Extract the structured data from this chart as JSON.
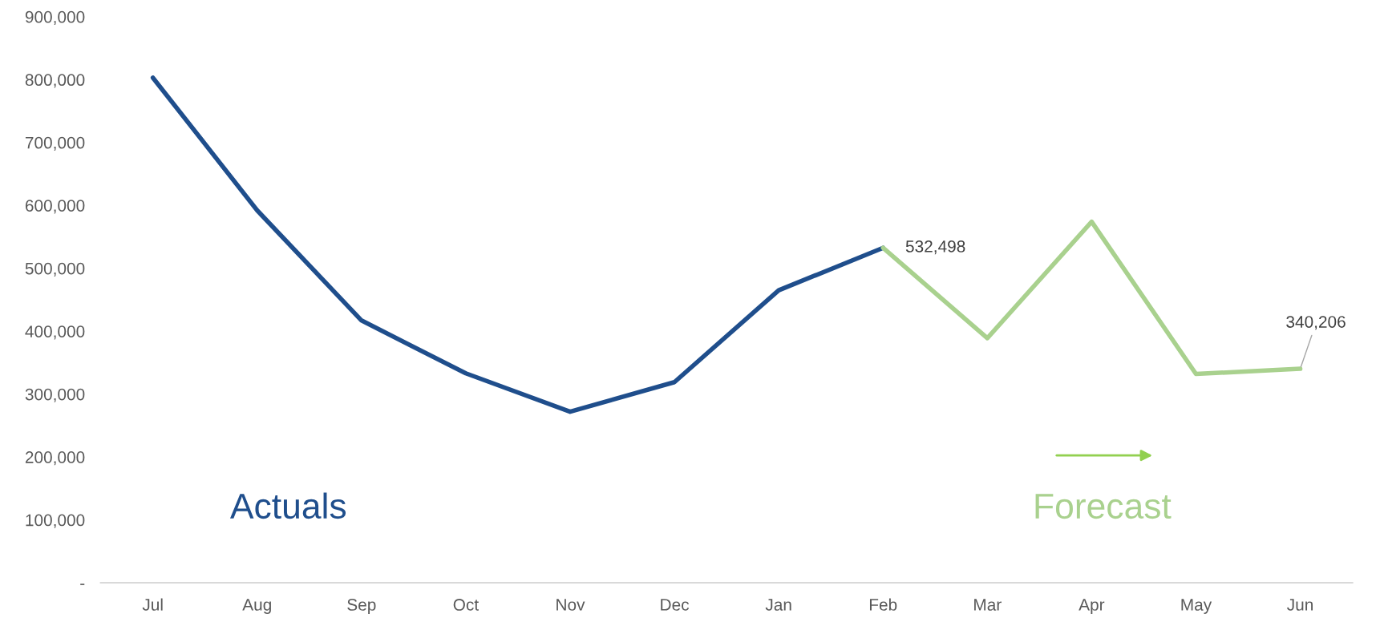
{
  "chart_data": {
    "type": "line",
    "categories": [
      "Jul",
      "Aug",
      "Sep",
      "Oct",
      "Nov",
      "Dec",
      "Jan",
      "Feb",
      "Mar",
      "Apr",
      "May",
      "Jun"
    ],
    "series": [
      {
        "name": "Actuals",
        "color": "#1f4e8c",
        "values": [
          803000,
          592000,
          417000,
          333000,
          272000,
          319000,
          465000,
          532498,
          null,
          null,
          null,
          null
        ]
      },
      {
        "name": "Forecast",
        "color": "#a9d18e",
        "values": [
          null,
          null,
          null,
          null,
          null,
          null,
          null,
          532498,
          389000,
          574000,
          332000,
          340206
        ],
        "value_labels": [
          null,
          null,
          null,
          null,
          null,
          null,
          null,
          "532,498",
          null,
          null,
          null,
          "340,206"
        ]
      }
    ],
    "ylim": [
      0,
      900000
    ],
    "yticks": [
      {
        "value": 0,
        "label": "-"
      },
      {
        "value": 100000,
        "label": "100,000"
      },
      {
        "value": 200000,
        "label": "200,000"
      },
      {
        "value": 300000,
        "label": "300,000"
      },
      {
        "value": 400000,
        "label": "400,000"
      },
      {
        "value": 500000,
        "label": "500,000"
      },
      {
        "value": 600000,
        "label": "600,000"
      },
      {
        "value": 700000,
        "label": "700,000"
      },
      {
        "value": 800000,
        "label": "800,000"
      },
      {
        "value": 900000,
        "label": "900,000"
      }
    ],
    "grid": false,
    "legend": false,
    "marker": "none",
    "line_style": "solid"
  }
}
